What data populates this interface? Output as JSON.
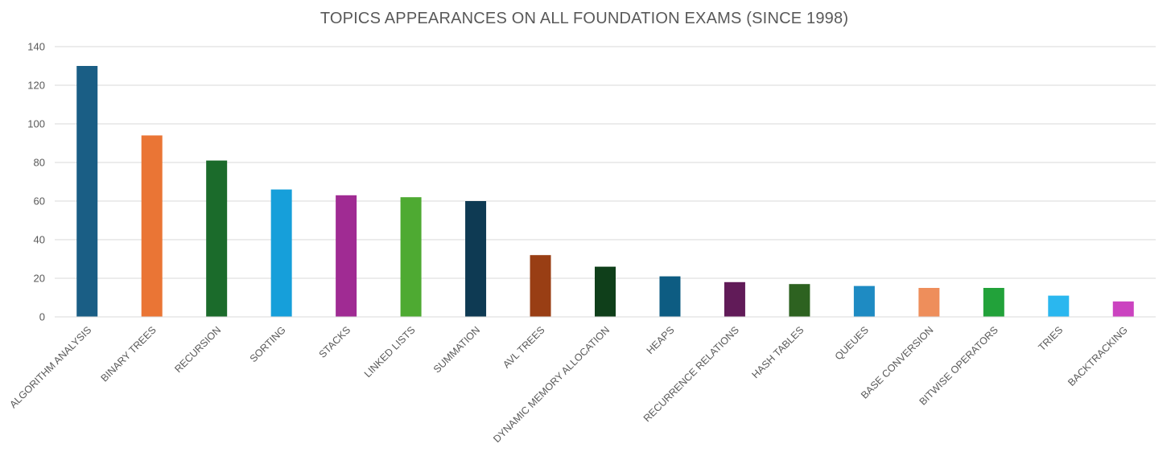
{
  "chart_data": {
    "type": "bar",
    "title": "TOPICS APPEARANCES ON ALL FOUNDATION EXAMS (SINCE 1998)",
    "xlabel": "",
    "ylabel": "",
    "ylim": [
      0,
      140
    ],
    "yticks": [
      0,
      20,
      40,
      60,
      80,
      100,
      120,
      140
    ],
    "grid": true,
    "legend": "none",
    "categories": [
      "ALGORITHM ANALYSIS",
      "BINARY TREES",
      "RECURSION",
      "SORTING",
      "STACKS",
      "LINKED LISTS",
      "SUMMATION",
      "AVL TREES",
      "DYNAMIC MEMORY ALLOCATION",
      "HEAPS",
      "RECURRENCE RELATIONS",
      "HASH TABLES",
      "QUEUES",
      "BASE CONVERSION",
      "BITWISE OPERATORS",
      "TRIES",
      "BACKTRACKING"
    ],
    "values": [
      130,
      94,
      81,
      66,
      63,
      62,
      60,
      32,
      26,
      21,
      18,
      17,
      16,
      15,
      15,
      11,
      8
    ],
    "colors": [
      "#1a5e85",
      "#ea7535",
      "#1b6b2b",
      "#169fda",
      "#a02b93",
      "#4eaa32",
      "#0e3a53",
      "#993e14",
      "#0f3f1a",
      "#0d5c82",
      "#611b58",
      "#2d6220",
      "#1e8bc3",
      "#ee8e5b",
      "#22a23a",
      "#2ab7ef",
      "#cb43c0"
    ]
  }
}
